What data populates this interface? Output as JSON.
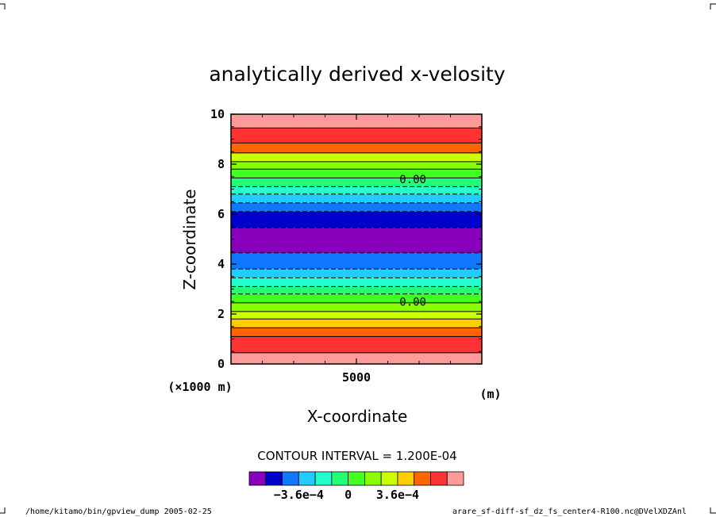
{
  "chart_data": {
    "type": "heatmap",
    "title": "analytically derived x-velosity",
    "xlabel": "X-coordinate",
    "ylabel": "Z-coordinate",
    "x_unit": "(m)",
    "x_scale_note": "(×1000 m)",
    "x_ticks": [
      {
        "value": 5000,
        "label": "5000"
      }
    ],
    "y_ticks": [
      {
        "value": 0,
        "label": "0"
      },
      {
        "value": 2,
        "label": "2"
      },
      {
        "value": 4,
        "label": "4"
      },
      {
        "value": 6,
        "label": "6"
      },
      {
        "value": 8,
        "label": "8"
      },
      {
        "value": 10,
        "label": "10"
      }
    ],
    "xlim": [
      1000,
      9000
    ],
    "ylim": [
      0,
      10
    ],
    "grid": false,
    "contour_interval_text": "CONTOUR INTERVAL = 1.200E-04",
    "contour_labels": [
      {
        "text": "0.00",
        "x": 6800,
        "z": 7.4
      },
      {
        "text": "0.00",
        "x": 6800,
        "z": 2.5
      }
    ],
    "bands": [
      {
        "z0": 0.0,
        "z1": 0.45,
        "color": "#ff9a9a"
      },
      {
        "z0": 0.45,
        "z1": 1.1,
        "color": "#ff3333"
      },
      {
        "z0": 1.1,
        "z1": 1.45,
        "color": "#ff6600"
      },
      {
        "z0": 1.45,
        "z1": 1.8,
        "color": "#ffcc00"
      },
      {
        "z0": 1.8,
        "z1": 2.1,
        "color": "#ccff00"
      },
      {
        "z0": 2.1,
        "z1": 2.45,
        "color": "#88ff00"
      },
      {
        "z0": 2.45,
        "z1": 2.8,
        "color": "#44ff22"
      },
      {
        "z0": 2.8,
        "z1": 3.1,
        "color": "#22ff77"
      },
      {
        "z0": 3.1,
        "z1": 3.45,
        "color": "#22ffcc"
      },
      {
        "z0": 3.45,
        "z1": 3.8,
        "color": "#22ccff"
      },
      {
        "z0": 3.8,
        "z1": 4.45,
        "color": "#1177ff"
      },
      {
        "z0": 4.45,
        "z1": 5.45,
        "color": "#0000cc"
      },
      {
        "z0": 5.45,
        "z1": 5.45,
        "color": "#0000cc"
      },
      {
        "z0": 4.45,
        "z1": 5.45,
        "color": "#8800bb"
      },
      {
        "z0": 5.45,
        "z1": 6.1,
        "color": "#0000cc"
      },
      {
        "z0": 6.1,
        "z1": 6.45,
        "color": "#1177ff"
      },
      {
        "z0": 6.45,
        "z1": 6.8,
        "color": "#22ccff"
      },
      {
        "z0": 6.8,
        "z1": 7.1,
        "color": "#22ffcc"
      },
      {
        "z0": 7.1,
        "z1": 7.45,
        "color": "#22ff77"
      },
      {
        "z0": 7.45,
        "z1": 7.8,
        "color": "#44ff22"
      },
      {
        "z0": 7.8,
        "z1": 8.1,
        "color": "#88ff00"
      },
      {
        "z0": 8.1,
        "z1": 8.45,
        "color": "#ccff00"
      },
      {
        "z0": 8.45,
        "z1": 8.85,
        "color": "#ff6600"
      },
      {
        "z0": 8.85,
        "z1": 9.45,
        "color": "#ff3333"
      },
      {
        "z0": 9.45,
        "z1": 10.0,
        "color": "#ff9a9a"
      }
    ],
    "contour_lines": [
      {
        "z": 0.45,
        "dashed": false
      },
      {
        "z": 1.1,
        "dashed": false
      },
      {
        "z": 1.45,
        "dashed": false
      },
      {
        "z": 1.8,
        "dashed": false
      },
      {
        "z": 2.1,
        "dashed": false
      },
      {
        "z": 2.45,
        "dashed": false
      },
      {
        "z": 2.8,
        "dashed": true
      },
      {
        "z": 3.1,
        "dashed": true
      },
      {
        "z": 3.45,
        "dashed": true
      },
      {
        "z": 3.8,
        "dashed": true
      },
      {
        "z": 4.45,
        "dashed": true
      },
      {
        "z": 5.45,
        "dashed": true
      },
      {
        "z": 6.1,
        "dashed": true
      },
      {
        "z": 6.45,
        "dashed": true
      },
      {
        "z": 6.8,
        "dashed": true
      },
      {
        "z": 7.1,
        "dashed": true
      },
      {
        "z": 7.45,
        "dashed": false
      },
      {
        "z": 7.8,
        "dashed": false
      },
      {
        "z": 8.1,
        "dashed": false
      },
      {
        "z": 8.45,
        "dashed": false
      },
      {
        "z": 8.85,
        "dashed": false
      },
      {
        "z": 9.45,
        "dashed": false
      }
    ],
    "colorbar": {
      "colors": [
        "#8800bb",
        "#0000cc",
        "#1177ff",
        "#22ccff",
        "#22ffcc",
        "#22ff77",
        "#44ff22",
        "#88ff00",
        "#ccff00",
        "#ffcc00",
        "#ff6600",
        "#ff3333",
        "#ff9a9a"
      ],
      "tick_labels": [
        {
          "index": 3,
          "label": "−3.6e−4"
        },
        {
          "index": 6,
          "label": "0"
        },
        {
          "index": 9,
          "label": "3.6e−4"
        }
      ]
    }
  },
  "footer": {
    "left": "/home/kitamo/bin/gpview_dump  2005-02-25",
    "right": "arare_sf-diff-sf_dz_fs_center4-R100.nc@DVelXDZAnl"
  }
}
